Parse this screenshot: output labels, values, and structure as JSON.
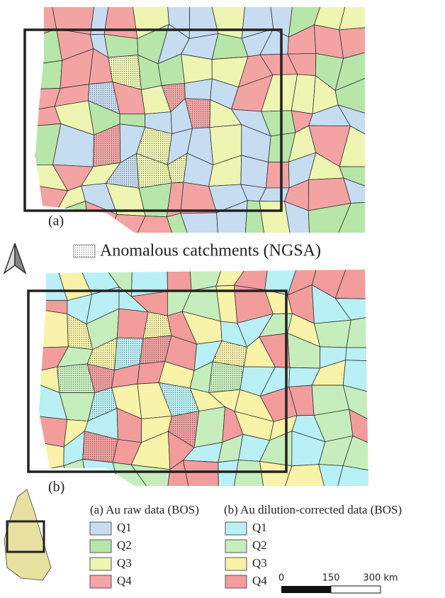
{
  "panels": [
    {
      "label": "(a)",
      "legend_title": "(a) Au raw data (BOS)",
      "classes": [
        {
          "name": "Q1",
          "color": "#c6dcf0"
        },
        {
          "name": "Q2",
          "color": "#b7e6a8"
        },
        {
          "name": "Q3",
          "color": "#eef5b3"
        },
        {
          "name": "Q4",
          "color": "#f4a3a3"
        }
      ]
    },
    {
      "label": "(b)",
      "legend_title": "(b) Au dilution-corrected data (BOS)",
      "classes": [
        {
          "name": "Q1",
          "color": "#b8f0f5"
        },
        {
          "name": "Q2",
          "color": "#c5eebc"
        },
        {
          "name": "Q3",
          "color": "#f8f3a8"
        },
        {
          "name": "Q4",
          "color": "#f29c9c"
        }
      ]
    }
  ],
  "anomaly_legend": "Anomalous catchments (NGSA)",
  "scale_bar": [
    "0",
    "150",
    "300 km"
  ]
}
